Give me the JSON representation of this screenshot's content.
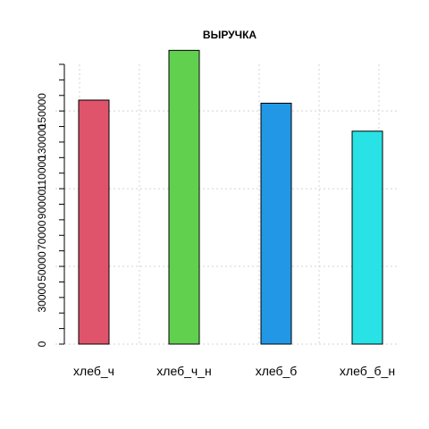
{
  "chart_data": {
    "type": "bar",
    "title": "ВЫРУЧКА",
    "xlabel": "",
    "ylabel": "",
    "categories": [
      "хлеб_ч",
      "хлеб_ч_н",
      "хлеб_б",
      "хлеб_б_н"
    ],
    "values": [
      157000,
      189000,
      155000,
      137000
    ],
    "colors": [
      "#DF536B",
      "#61D04F",
      "#2297E6",
      "#28E2E5"
    ],
    "ylim": [
      0,
      180000
    ],
    "yticks": [
      0,
      10000,
      20000,
      30000,
      40000,
      50000,
      60000,
      70000,
      80000,
      90000,
      100000,
      110000,
      120000,
      130000,
      140000,
      150000,
      160000,
      170000,
      180000
    ],
    "ytick_labels": [
      "0",
      "",
      "",
      "30000",
      "",
      "50000",
      "",
      "70000",
      "",
      "90000",
      "",
      "110000",
      "",
      "130000",
      "",
      "150000",
      "",
      "",
      ""
    ],
    "grid": true
  }
}
